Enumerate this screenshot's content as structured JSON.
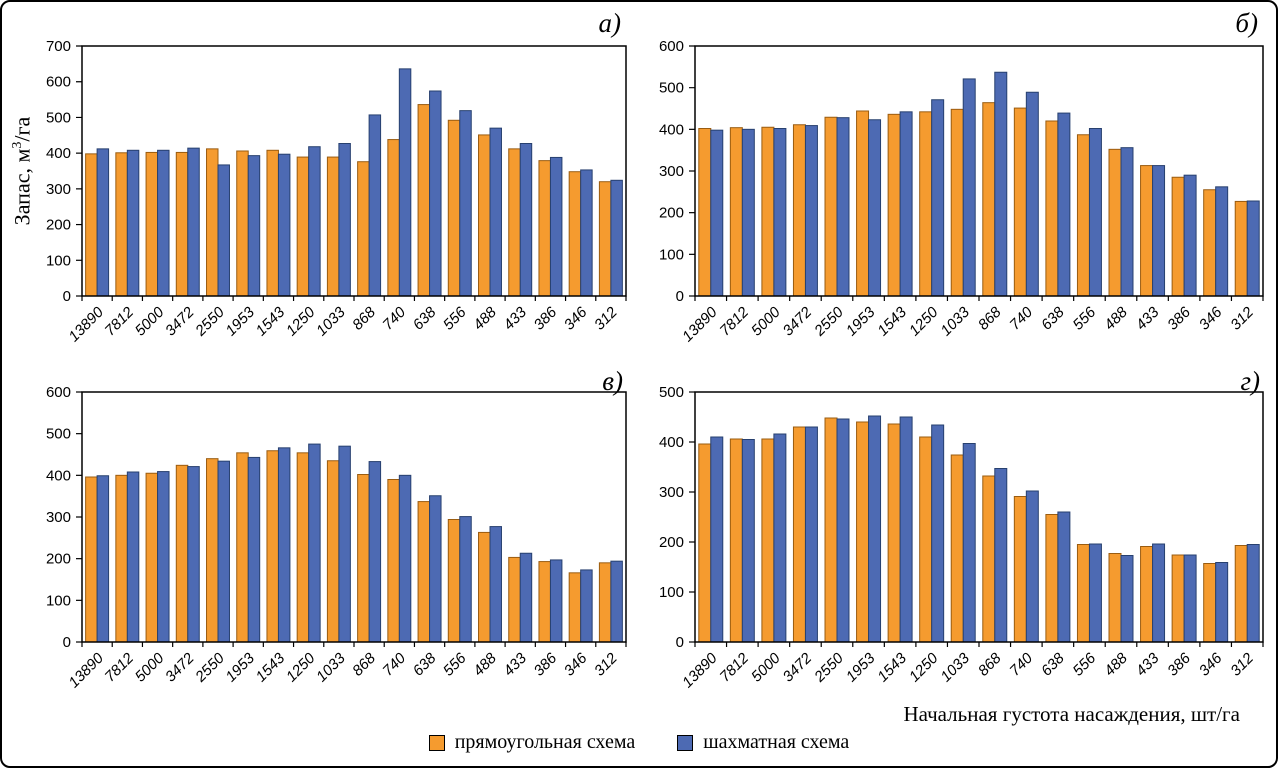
{
  "figure": {
    "x_axis_title": "Начальная густота насаждения, шт/га",
    "y_axis_title": {
      "prefix": "Запас, м",
      "sup": "3",
      "suffix": "/га"
    }
  },
  "legend": {
    "position": "bottom-center",
    "items": [
      {
        "label": "прямоугольная схема",
        "color": "#F59B2F",
        "stroke": "#9a5c10"
      },
      {
        "label": "шахматная схема",
        "color": "#4D6AB3",
        "stroke": "#27406f"
      }
    ]
  },
  "colors": {
    "bar_orange": "#F59B2F",
    "bar_blue": "#4D6AB3",
    "axis": "#000000",
    "background": "#ffffff"
  },
  "chart_data": [
    {
      "type": "bar",
      "panel_label": "а)",
      "title": "",
      "xlabel": "Начальная густота насаждения, шт/га",
      "ylabel": "Запас, м3/га",
      "ylim": [
        0,
        700
      ],
      "ytick_step": 100,
      "grid": false,
      "legend_position": "bottom",
      "categories": [
        "13890",
        "7812",
        "5000",
        "3472",
        "2550",
        "1953",
        "1543",
        "1250",
        "1033",
        "868",
        "740",
        "638",
        "556",
        "488",
        "433",
        "386",
        "346",
        "312"
      ],
      "series": [
        {
          "name": "прямоугольная схема",
          "color": "#F59B2F",
          "stroke": "#9a5c10",
          "values": [
            398,
            401,
            402,
            402,
            412,
            406,
            408,
            389,
            389,
            376,
            438,
            536,
            492,
            451,
            412,
            379,
            348,
            320
          ]
        },
        {
          "name": "шахматная схема",
          "color": "#4D6AB3",
          "stroke": "#27406f",
          "values": [
            412,
            408,
            408,
            414,
            367,
            393,
            397,
            418,
            427,
            507,
            636,
            574,
            519,
            470,
            427,
            388,
            353,
            324
          ]
        }
      ]
    },
    {
      "type": "bar",
      "panel_label": "б)",
      "title": "",
      "xlabel": "Начальная густота насаждения, шт/га",
      "ylabel": "Запас, м3/га",
      "ylim": [
        0,
        600
      ],
      "ytick_step": 100,
      "grid": false,
      "legend_position": "bottom",
      "categories": [
        "13890",
        "7812",
        "5000",
        "3472",
        "2550",
        "1953",
        "1543",
        "1250",
        "1033",
        "868",
        "740",
        "638",
        "556",
        "488",
        "433",
        "386",
        "346",
        "312"
      ],
      "series": [
        {
          "name": "прямоугольная схема",
          "color": "#F59B2F",
          "stroke": "#9a5c10",
          "values": [
            402,
            404,
            405,
            411,
            429,
            444,
            436,
            442,
            448,
            464,
            451,
            420,
            387,
            352,
            313,
            285,
            255,
            227
          ]
        },
        {
          "name": "шахматная схема",
          "color": "#4D6AB3",
          "stroke": "#27406f",
          "values": [
            398,
            400,
            402,
            409,
            428,
            423,
            442,
            471,
            521,
            537,
            489,
            439,
            402,
            356,
            313,
            290,
            262,
            228
          ]
        }
      ]
    },
    {
      "type": "bar",
      "panel_label": "в)",
      "title": "",
      "xlabel": "Начальная густота насаждения, шт/га",
      "ylabel": "Запас, м3/га",
      "ylim": [
        0,
        600
      ],
      "ytick_step": 100,
      "grid": false,
      "legend_position": "bottom",
      "categories": [
        "13890",
        "7812",
        "5000",
        "3472",
        "2550",
        "1953",
        "1543",
        "1250",
        "1033",
        "868",
        "740",
        "638",
        "556",
        "488",
        "433",
        "386",
        "346",
        "312"
      ],
      "series": [
        {
          "name": "прямоугольная схема",
          "color": "#F59B2F",
          "stroke": "#9a5c10",
          "values": [
            396,
            400,
            405,
            424,
            440,
            454,
            459,
            454,
            435,
            402,
            390,
            337,
            294,
            263,
            203,
            193,
            166,
            190
          ]
        },
        {
          "name": "шахматная схема",
          "color": "#4D6AB3",
          "stroke": "#27406f",
          "values": [
            399,
            408,
            409,
            421,
            434,
            443,
            466,
            475,
            470,
            433,
            400,
            351,
            301,
            277,
            213,
            197,
            173,
            194
          ]
        }
      ]
    },
    {
      "type": "bar",
      "panel_label": "г)",
      "title": "",
      "xlabel": "Начальная густота насаждения, шт/га",
      "ylabel": "Запас, м3/га",
      "ylim": [
        0,
        500
      ],
      "ytick_step": 100,
      "grid": false,
      "legend_position": "bottom",
      "categories": [
        "13890",
        "7812",
        "5000",
        "3472",
        "2550",
        "1953",
        "1543",
        "1250",
        "1033",
        "868",
        "740",
        "638",
        "556",
        "488",
        "433",
        "386",
        "346",
        "312"
      ],
      "series": [
        {
          "name": "прямоугольная схема",
          "color": "#F59B2F",
          "stroke": "#9a5c10",
          "values": [
            396,
            406,
            406,
            430,
            448,
            440,
            436,
            410,
            374,
            332,
            291,
            255,
            195,
            177,
            191,
            174,
            157,
            193
          ]
        },
        {
          "name": "шахматная схема",
          "color": "#4D6AB3",
          "stroke": "#27406f",
          "values": [
            410,
            405,
            416,
            430,
            446,
            452,
            450,
            434,
            397,
            347,
            302,
            260,
            196,
            173,
            196,
            174,
            159,
            195
          ]
        }
      ]
    }
  ]
}
